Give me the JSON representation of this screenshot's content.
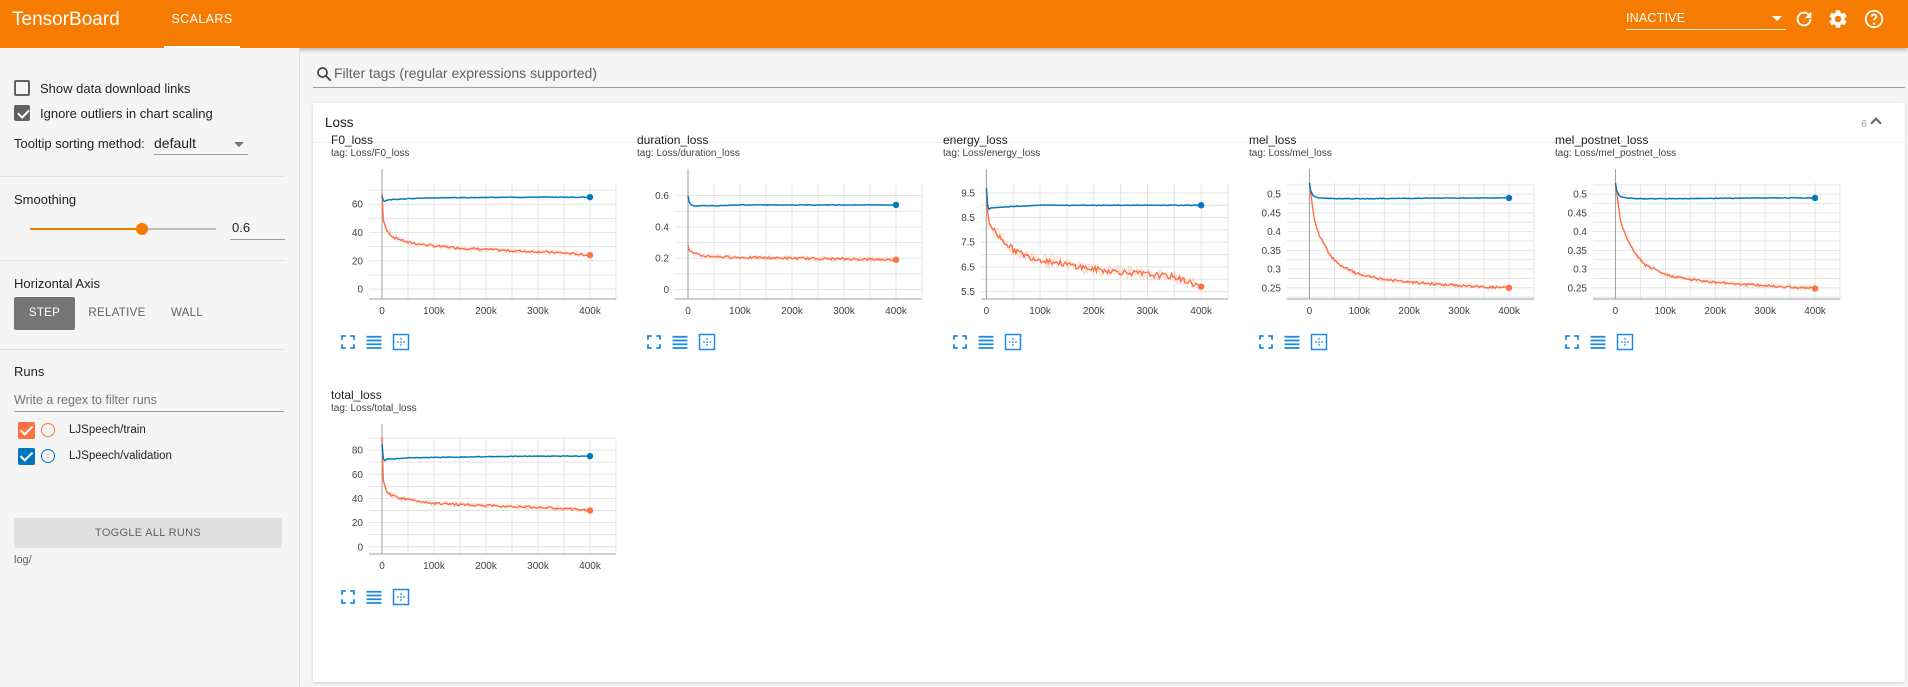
{
  "header": {
    "brand": "TensorBoard",
    "tabs": [
      {
        "label": "SCALARS",
        "active": true
      }
    ],
    "run_status": "INACTIVE",
    "icons": [
      "refresh-icon",
      "settings-icon",
      "help-icon"
    ],
    "color": "#f57c00"
  },
  "sidebar": {
    "show_download_links": {
      "label": "Show data download links",
      "checked": false
    },
    "ignore_outliers": {
      "label": "Ignore outliers in chart scaling",
      "checked": true
    },
    "tooltip_sorting": {
      "label": "Tooltip sorting method:",
      "value": "default"
    },
    "smoothing": {
      "label": "Smoothing",
      "value": "0.6",
      "fraction": 0.6
    },
    "horizontal_axis": {
      "label": "Horizontal Axis",
      "options": [
        "STEP",
        "RELATIVE",
        "WALL"
      ],
      "selected": "STEP"
    },
    "runs": {
      "label": "Runs",
      "filter_placeholder": "Write a regex to filter runs",
      "items": [
        {
          "name": "LJSpeech/train",
          "color": "#ff7043",
          "checked": true
        },
        {
          "name": "LJSpeech/validation",
          "color": "#0077bb",
          "checked": true
        }
      ],
      "toggle_label": "TOGGLE ALL RUNS",
      "logdir": "log/"
    }
  },
  "main": {
    "filter_placeholder": "Filter tags (regular expressions supported)",
    "category": {
      "title": "Loss",
      "count": "6"
    }
  },
  "chart_data": [
    {
      "type": "line",
      "title": "F0_loss",
      "tag": "tag: Loss/F0_loss",
      "x_ticks": [
        "0",
        "100k",
        "200k",
        "300k",
        "400k"
      ],
      "y_ticks": [
        {
          "v": 0,
          "l": "0"
        },
        {
          "v": 20,
          "l": "20"
        },
        {
          "v": 40,
          "l": "40"
        },
        {
          "v": 60,
          "l": "60"
        }
      ],
      "ylim": [
        -7,
        75
      ],
      "xlim": [
        -25000,
        450000
      ],
      "series": [
        {
          "name": "LJSpeech/train",
          "color": "#ff7043",
          "x": [
            0,
            2000,
            8000,
            20000,
            50000,
            100000,
            150000,
            200000,
            250000,
            300000,
            350000,
            400000
          ],
          "y": [
            68,
            50,
            42,
            37,
            33,
            30.5,
            29,
            28,
            27,
            26.5,
            25.5,
            24
          ]
        },
        {
          "name": "LJSpeech/validation",
          "color": "#0077bb",
          "x": [
            0,
            3000,
            10000,
            50000,
            100000,
            200000,
            300000,
            400000
          ],
          "y": [
            66,
            62,
            63,
            64,
            64.5,
            64.8,
            65,
            65
          ]
        }
      ]
    },
    {
      "type": "line",
      "title": "duration_loss",
      "tag": "tag: Loss/duration_loss",
      "x_ticks": [
        "0",
        "100k",
        "200k",
        "300k",
        "400k"
      ],
      "y_ticks": [
        {
          "v": 0,
          "l": "0"
        },
        {
          "v": 0.2,
          "l": "0.2"
        },
        {
          "v": 0.4,
          "l": "0.4"
        },
        {
          "v": 0.6,
          "l": "0.6"
        }
      ],
      "ylim": [
        -0.06,
        0.68
      ],
      "xlim": [
        -25000,
        450000
      ],
      "series": [
        {
          "name": "LJSpeech/train",
          "color": "#ff7043",
          "x": [
            0,
            3000,
            10000,
            30000,
            60000,
            100000,
            200000,
            300000,
            400000
          ],
          "y": [
            0.28,
            0.25,
            0.23,
            0.215,
            0.21,
            0.205,
            0.2,
            0.195,
            0.19
          ]
        },
        {
          "name": "LJSpeech/validation",
          "color": "#0077bb",
          "x": [
            0,
            3000,
            10000,
            50000,
            100000,
            200000,
            300000,
            400000
          ],
          "y": [
            0.6,
            0.55,
            0.535,
            0.535,
            0.54,
            0.54,
            0.54,
            0.54
          ]
        }
      ]
    },
    {
      "type": "line",
      "title": "energy_loss",
      "tag": "tag: Loss/energy_loss",
      "x_ticks": [
        "0",
        "100k",
        "200k",
        "300k",
        "400k"
      ],
      "y_ticks": [
        {
          "v": 5.5,
          "l": "5.5"
        },
        {
          "v": 6.5,
          "l": "6.5"
        },
        {
          "v": 7.5,
          "l": "7.5"
        },
        {
          "v": 8.5,
          "l": "8.5"
        },
        {
          "v": 9.5,
          "l": "9.5"
        }
      ],
      "ylim": [
        5.2,
        9.9
      ],
      "xlim": [
        -10000,
        450000
      ],
      "series": [
        {
          "name": "LJSpeech/train",
          "color": "#ff7043",
          "x": [
            0,
            5000,
            20000,
            50000,
            80000,
            100000,
            150000,
            200000,
            250000,
            300000,
            350000,
            400000
          ],
          "y": [
            9.2,
            8.3,
            7.8,
            7.2,
            6.9,
            6.8,
            6.6,
            6.4,
            6.3,
            6.2,
            6.1,
            5.7
          ]
        },
        {
          "name": "LJSpeech/validation",
          "color": "#0077bb",
          "x": [
            0,
            3000,
            10000,
            50000,
            100000,
            200000,
            300000,
            400000
          ],
          "y": [
            9.7,
            8.8,
            8.9,
            8.95,
            9.0,
            9.0,
            9.0,
            9.0
          ]
        }
      ]
    },
    {
      "type": "line",
      "title": "mel_loss",
      "tag": "tag: Loss/mel_loss",
      "x_ticks": [
        "0",
        "100k",
        "200k",
        "300k",
        "400k"
      ],
      "y_ticks": [
        {
          "v": 0.25,
          "l": "0.25"
        },
        {
          "v": 0.3,
          "l": "0.3"
        },
        {
          "v": 0.35,
          "l": "0.35"
        },
        {
          "v": 0.4,
          "l": "0.4"
        },
        {
          "v": 0.45,
          "l": "0.45"
        },
        {
          "v": 0.5,
          "l": "0.5"
        }
      ],
      "ylim": [
        0.22,
        0.53
      ],
      "xlim": [
        -45000,
        450000
      ],
      "series": [
        {
          "name": "LJSpeech/train",
          "color": "#ff7043",
          "x": [
            0,
            5000,
            10000,
            20000,
            40000,
            60000,
            100000,
            150000,
            200000,
            250000,
            300000,
            350000,
            400000
          ],
          "y": [
            0.53,
            0.48,
            0.43,
            0.39,
            0.34,
            0.31,
            0.285,
            0.272,
            0.265,
            0.26,
            0.256,
            0.252,
            0.25
          ]
        },
        {
          "name": "LJSpeech/validation",
          "color": "#0077bb",
          "x": [
            0,
            2000,
            8000,
            20000,
            50000,
            100000,
            200000,
            300000,
            400000
          ],
          "y": [
            0.53,
            0.51,
            0.495,
            0.49,
            0.488,
            0.488,
            0.489,
            0.49,
            0.49
          ]
        }
      ]
    },
    {
      "type": "line",
      "title": "mel_postnet_loss",
      "tag": "tag: Loss/mel_postnet_loss",
      "x_ticks": [
        "0",
        "100k",
        "200k",
        "300k",
        "400k"
      ],
      "y_ticks": [
        {
          "v": 0.25,
          "l": "0.25"
        },
        {
          "v": 0.3,
          "l": "0.3"
        },
        {
          "v": 0.35,
          "l": "0.35"
        },
        {
          "v": 0.4,
          "l": "0.4"
        },
        {
          "v": 0.45,
          "l": "0.45"
        },
        {
          "v": 0.5,
          "l": "0.5"
        }
      ],
      "ylim": [
        0.22,
        0.53
      ],
      "xlim": [
        -45000,
        450000
      ],
      "series": [
        {
          "name": "LJSpeech/train",
          "color": "#ff7043",
          "x": [
            0,
            5000,
            10000,
            20000,
            40000,
            60000,
            100000,
            150000,
            200000,
            250000,
            300000,
            350000,
            400000
          ],
          "y": [
            0.53,
            0.48,
            0.43,
            0.39,
            0.34,
            0.31,
            0.285,
            0.272,
            0.265,
            0.26,
            0.256,
            0.252,
            0.248
          ]
        },
        {
          "name": "LJSpeech/validation",
          "color": "#0077bb",
          "x": [
            0,
            2000,
            8000,
            20000,
            50000,
            100000,
            200000,
            300000,
            400000
          ],
          "y": [
            0.53,
            0.51,
            0.495,
            0.49,
            0.488,
            0.488,
            0.489,
            0.49,
            0.49
          ]
        }
      ]
    },
    {
      "type": "line",
      "title": "total_loss",
      "tag": "tag: Loss/total_loss",
      "x_ticks": [
        "0",
        "100k",
        "200k",
        "300k",
        "400k"
      ],
      "y_ticks": [
        {
          "v": 0,
          "l": "0"
        },
        {
          "v": 20,
          "l": "20"
        },
        {
          "v": 40,
          "l": "40"
        },
        {
          "v": 60,
          "l": "60"
        },
        {
          "v": 80,
          "l": "80"
        }
      ],
      "ylim": [
        -6,
        90
      ],
      "xlim": [
        -25000,
        450000
      ],
      "series": [
        {
          "name": "LJSpeech/train",
          "color": "#ff7043",
          "x": [
            0,
            2000,
            8000,
            20000,
            50000,
            100000,
            150000,
            200000,
            250000,
            300000,
            350000,
            400000
          ],
          "y": [
            90,
            55,
            46,
            42,
            39,
            36,
            35,
            34,
            33.5,
            32.5,
            31.5,
            30
          ]
        },
        {
          "name": "LJSpeech/validation",
          "color": "#0077bb",
          "x": [
            0,
            3000,
            10000,
            50000,
            100000,
            200000,
            300000,
            400000
          ],
          "y": [
            85,
            71,
            72.5,
            73.5,
            74,
            74.5,
            75,
            75
          ]
        }
      ]
    }
  ]
}
